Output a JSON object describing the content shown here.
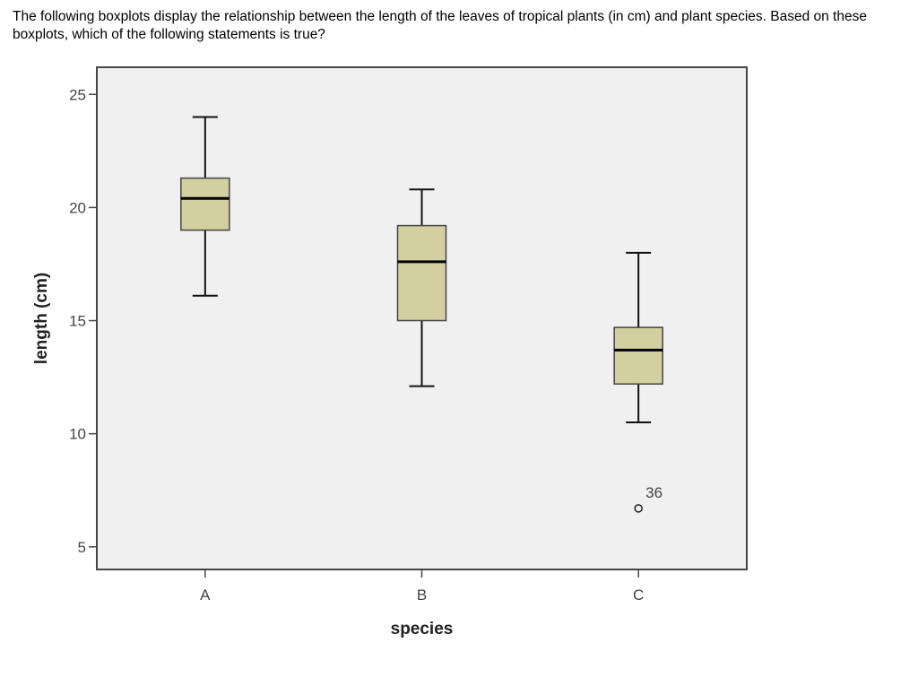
{
  "question": {
    "text": "The following boxplots display the relationship between the length of the leaves of tropical plants (in cm) and plant species. Based on these boxplots, which of the following statements is true?"
  },
  "chart_data": {
    "type": "boxplot",
    "title": "",
    "xlabel": "species",
    "ylabel": "length (cm)",
    "ylim": [
      4,
      26.2
    ],
    "yticks": [
      5,
      10,
      15,
      20,
      25
    ],
    "categories": [
      "A",
      "B",
      "C"
    ],
    "boxes": [
      {
        "category": "A",
        "whisker_low": 16.1,
        "q1": 19.0,
        "median": 20.4,
        "q3": 21.3,
        "whisker_high": 24.0,
        "outliers": []
      },
      {
        "category": "B",
        "whisker_low": 12.1,
        "q1": 15.0,
        "median": 17.6,
        "q3": 19.2,
        "whisker_high": 20.8,
        "outliers": []
      },
      {
        "category": "C",
        "whisker_low": 10.5,
        "q1": 12.2,
        "median": 13.7,
        "q3": 14.7,
        "whisker_high": 18.0,
        "outliers": [
          {
            "value": 6.7,
            "label": "36"
          }
        ]
      }
    ],
    "grid": false,
    "colors": {
      "box_fill": "#d3cfa0",
      "plot_bg": "#f0f0f0",
      "frame": "#444444"
    }
  }
}
